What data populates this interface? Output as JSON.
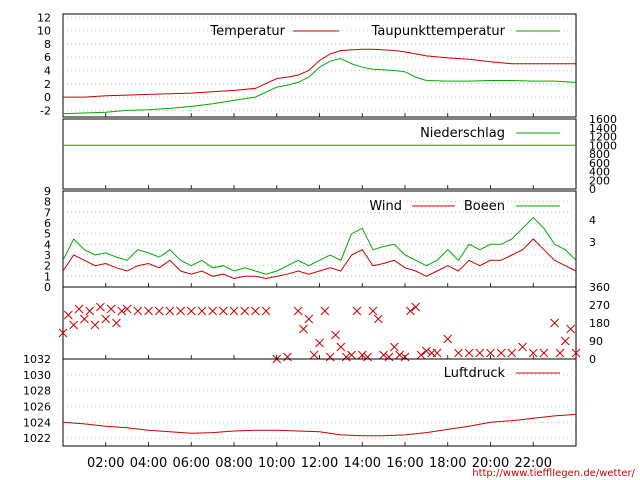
{
  "colors": {
    "red": "#cc0000",
    "green": "#00aa00",
    "grid": "#999999",
    "axis": "#000000"
  },
  "x_axis": {
    "range": [
      0,
      24
    ],
    "ticks": [
      {
        "v": 2,
        "label": "02:00"
      },
      {
        "v": 4,
        "label": "04:00"
      },
      {
        "v": 6,
        "label": "06:00"
      },
      {
        "v": 8,
        "label": "08:00"
      },
      {
        "v": 10,
        "label": "10:00"
      },
      {
        "v": 12,
        "label": "12:00"
      },
      {
        "v": 14,
        "label": "14:00"
      },
      {
        "v": 16,
        "label": "16:00"
      },
      {
        "v": 18,
        "label": "18:00"
      },
      {
        "v": 20,
        "label": "20:00"
      },
      {
        "v": 22,
        "label": "22:00"
      }
    ]
  },
  "credit": "http://www.tiefflIegen.de/wetter/",
  "chart_data": [
    {
      "id": "temperature",
      "type": "line",
      "x_unit": "hour",
      "ylim": [
        -3,
        12.5
      ],
      "y_ticks": [
        "12",
        "10",
        "8",
        "6",
        "4",
        "2",
        "0",
        "-2"
      ],
      "y_tick_values": [
        12,
        10,
        8,
        6,
        4,
        2,
        0,
        -2
      ],
      "grid": true,
      "legend_position": "top-right",
      "series": [
        {
          "name": "Temperatur",
          "color": "#cc0000",
          "x": [
            0,
            1,
            2,
            3,
            4,
            5,
            6,
            7,
            8,
            9,
            10,
            10.5,
            11,
            11.5,
            12,
            12.5,
            13,
            13.5,
            14,
            14.5,
            15,
            15.5,
            16,
            16.5,
            17,
            18,
            19,
            20,
            21,
            22,
            23,
            24
          ],
          "y": [
            0,
            0,
            0.2,
            0.3,
            0.4,
            0.5,
            0.6,
            0.8,
            1.0,
            1.3,
            2.8,
            3.0,
            3.3,
            4.0,
            5.5,
            6.5,
            7.0,
            7.1,
            7.2,
            7.2,
            7.1,
            7.0,
            6.8,
            6.5,
            6.2,
            5.9,
            5.7,
            5.3,
            5.0,
            5.0,
            5.0,
            5.0
          ]
        },
        {
          "name": "Taupunkttemperatur",
          "color": "#00aa00",
          "x": [
            0,
            1,
            2,
            3,
            4,
            5,
            6,
            7,
            8,
            9,
            10,
            10.5,
            11,
            11.5,
            12,
            12.5,
            13,
            13.5,
            14,
            14.5,
            15,
            15.5,
            16,
            16.5,
            17,
            18,
            19,
            20,
            21,
            22,
            23,
            24
          ],
          "y": [
            -2.5,
            -2.4,
            -2.3,
            -2.0,
            -1.9,
            -1.7,
            -1.4,
            -1.0,
            -0.5,
            0,
            1.5,
            1.8,
            2.2,
            3.0,
            4.5,
            5.4,
            5.8,
            5.0,
            4.5,
            4.2,
            4.1,
            4.0,
            3.8,
            3.0,
            2.5,
            2.4,
            2.4,
            2.5,
            2.5,
            2.4,
            2.4,
            2.2
          ]
        }
      ]
    },
    {
      "id": "precipitation",
      "type": "line",
      "x_unit": "hour",
      "ylim": [
        0,
        1600
      ],
      "y_ticks_right": [
        "1600",
        "1400",
        "1200",
        "1000",
        "800",
        "600",
        "400",
        "200",
        "0"
      ],
      "y_tick_values": [
        1600,
        1400,
        1200,
        1000,
        800,
        600,
        400,
        200,
        0
      ],
      "legend_position": "top-right",
      "series": [
        {
          "name": "Niederschlag",
          "color": "#00aa00",
          "x": [
            0,
            24
          ],
          "y": [
            1000,
            1000
          ]
        }
      ]
    },
    {
      "id": "wind",
      "type": "line",
      "x_unit": "hour",
      "ylim": [
        0,
        9
      ],
      "y_ticks": [
        "9",
        "8",
        "7",
        "6",
        "5",
        "4",
        "3",
        "2",
        "1",
        "0"
      ],
      "y_tick_values": [
        9,
        8,
        7,
        6,
        5,
        4,
        3,
        2,
        1,
        0
      ],
      "y_ticks_right": [
        "4",
        "3"
      ],
      "y_tick_right_values": [
        6.3,
        4.2
      ],
      "grid": true,
      "legend_position": "top-right",
      "series": [
        {
          "name": "Wind",
          "color": "#cc0000",
          "x": [
            0,
            0.5,
            1,
            1.5,
            2,
            2.5,
            3,
            3.5,
            4,
            4.5,
            5,
            5.5,
            6,
            6.5,
            7,
            7.5,
            8,
            8.5,
            9,
            9.5,
            10,
            10.5,
            11,
            11.5,
            12,
            12.5,
            13,
            13.5,
            14,
            14.5,
            15,
            15.5,
            16,
            16.5,
            17,
            17.5,
            18,
            18.5,
            19,
            19.5,
            20,
            20.5,
            21,
            21.5,
            22,
            22.5,
            23,
            23.5,
            24
          ],
          "y": [
            1.5,
            3,
            2.5,
            2,
            2.2,
            1.8,
            1.5,
            2,
            2.2,
            1.8,
            2.5,
            1.5,
            1.2,
            1.5,
            1.0,
            1.2,
            0.8,
            1.0,
            1.0,
            0.8,
            1.0,
            1.2,
            1.5,
            1.2,
            1.5,
            1.8,
            1.5,
            3.0,
            3.5,
            2.0,
            2.2,
            2.5,
            1.8,
            1.5,
            1.0,
            1.5,
            2.0,
            1.5,
            2.5,
            2.0,
            2.5,
            2.5,
            3.0,
            3.5,
            4.5,
            3.5,
            2.5,
            2.0,
            1.5
          ]
        },
        {
          "name": "Boeen",
          "color": "#00aa00",
          "x": [
            0,
            0.5,
            1,
            1.5,
            2,
            2.5,
            3,
            3.5,
            4,
            4.5,
            5,
            5.5,
            6,
            6.5,
            7,
            7.5,
            8,
            8.5,
            9,
            9.5,
            10,
            10.5,
            11,
            11.5,
            12,
            12.5,
            13,
            13.5,
            14,
            14.5,
            15,
            15.5,
            16,
            16.5,
            17,
            17.5,
            18,
            18.5,
            19,
            19.5,
            20,
            20.5,
            21,
            21.5,
            22,
            22.5,
            23,
            23.5,
            24
          ],
          "y": [
            2.5,
            4.5,
            3.5,
            3.0,
            3.2,
            2.8,
            2.5,
            3.5,
            3.2,
            2.8,
            3.5,
            2.5,
            2.0,
            2.5,
            1.8,
            2.0,
            1.5,
            1.8,
            1.5,
            1.2,
            1.5,
            2.0,
            2.5,
            2.0,
            2.5,
            3.0,
            2.5,
            5.0,
            5.5,
            3.5,
            3.8,
            4.0,
            3.0,
            2.5,
            2.0,
            2.5,
            3.5,
            2.5,
            4.0,
            3.5,
            4.0,
            4.0,
            4.5,
            5.5,
            6.5,
            5.5,
            4.0,
            3.5,
            2.5
          ]
        }
      ]
    },
    {
      "id": "wind_direction",
      "type": "scatter",
      "x_unit": "hour",
      "ylim": [
        0,
        360
      ],
      "y_ticks_right": [
        "360",
        "270",
        "180",
        "90",
        "0"
      ],
      "y_tick_values": [
        360,
        270,
        180,
        90,
        0
      ],
      "series": [
        {
          "color": "#cc0000",
          "marker": "x",
          "x": [
            0,
            0.25,
            0.5,
            0.75,
            1,
            1.25,
            1.5,
            1.75,
            2,
            2.25,
            2.5,
            2.75,
            3,
            3.5,
            4,
            4.5,
            5,
            5.5,
            6,
            6.5,
            7,
            7.5,
            8,
            8.5,
            9,
            9.5,
            10,
            10.5,
            11,
            11.25,
            11.5,
            11.75,
            12,
            12.25,
            12.5,
            12.75,
            13,
            13.25,
            13.5,
            13.75,
            14,
            14.25,
            14.5,
            14.75,
            15,
            15.25,
            15.5,
            15.75,
            16,
            16.25,
            16.5,
            16.75,
            17,
            17.25,
            17.5,
            18,
            18.5,
            19,
            19.5,
            20,
            20.5,
            21,
            21.5,
            22,
            22.5,
            23,
            23.25,
            23.5,
            23.75,
            24
          ],
          "y": [
            130,
            220,
            170,
            250,
            200,
            240,
            170,
            260,
            200,
            250,
            180,
            240,
            250,
            240,
            240,
            240,
            240,
            240,
            240,
            240,
            240,
            240,
            240,
            240,
            240,
            240,
            0,
            10,
            240,
            150,
            200,
            20,
            80,
            240,
            10,
            120,
            60,
            10,
            20,
            240,
            20,
            10,
            240,
            200,
            20,
            10,
            60,
            20,
            10,
            240,
            260,
            20,
            40,
            30,
            30,
            100,
            30,
            30,
            30,
            30,
            30,
            30,
            60,
            30,
            30,
            180,
            30,
            90,
            150,
            30
          ]
        }
      ]
    },
    {
      "id": "pressure",
      "type": "line",
      "x_unit": "hour",
      "ylim": [
        1021,
        1032
      ],
      "y_ticks": [
        "1032",
        "1030",
        "1028",
        "1026",
        "1024",
        "1022"
      ],
      "y_tick_values": [
        1032,
        1030,
        1028,
        1026,
        1024,
        1022
      ],
      "grid": true,
      "legend_position": "top-right",
      "series": [
        {
          "name": "Luftdruck",
          "color": "#cc0000",
          "x": [
            0,
            1,
            2,
            3,
            4,
            5,
            6,
            7,
            8,
            9,
            10,
            11,
            12,
            13,
            14,
            15,
            16,
            17,
            18,
            19,
            20,
            21,
            22,
            23,
            24
          ],
          "y": [
            1024,
            1023.8,
            1023.5,
            1023.3,
            1023,
            1022.8,
            1022.6,
            1022.7,
            1022.9,
            1023,
            1023,
            1022.9,
            1022.8,
            1022.4,
            1022.3,
            1022.3,
            1022.4,
            1022.7,
            1023.1,
            1023.5,
            1024,
            1024.2,
            1024.5,
            1024.8,
            1025
          ]
        }
      ]
    }
  ]
}
